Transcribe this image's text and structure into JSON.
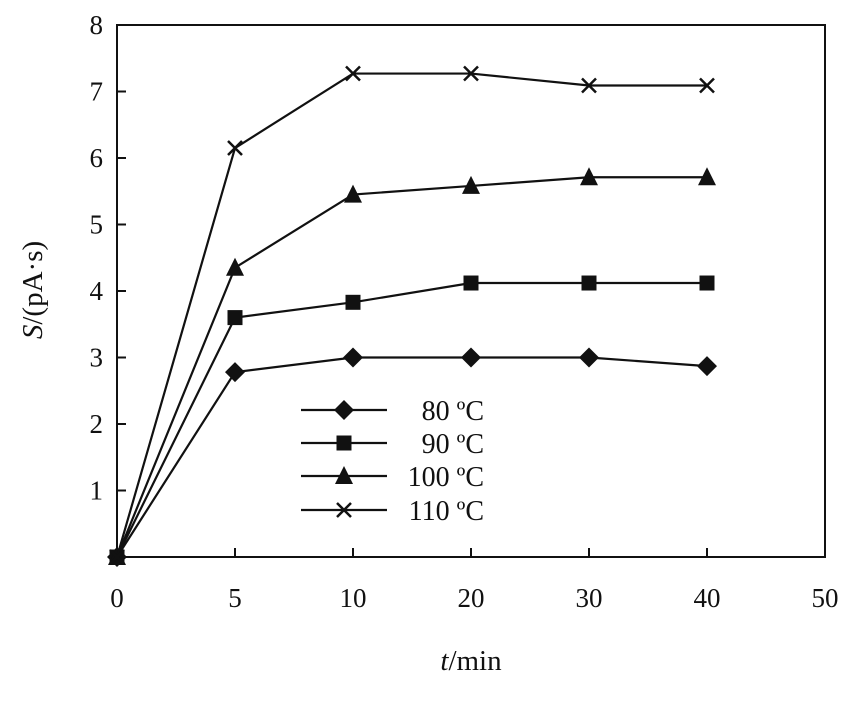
{
  "chart_data": {
    "type": "line",
    "title": "",
    "xlabel_italic": "t",
    "xlabel_rest": "/min",
    "ylabel_italic": "S",
    "ylabel_rest": "/(pA·s)",
    "x_tick_labels": [
      "0",
      "5",
      "10",
      "20",
      "30",
      "40",
      "50"
    ],
    "y_tick_labels": [
      "1",
      "2",
      "3",
      "4",
      "5",
      "6",
      "7",
      "8"
    ],
    "ylim": [
      0,
      8
    ],
    "categories": [
      "0",
      "5",
      "10",
      "20",
      "30",
      "40"
    ],
    "legend_position": "center-left",
    "grid": false,
    "series": [
      {
        "name": "80 ºC",
        "marker": "diamond",
        "values": [
          0,
          2.78,
          3.0,
          3.0,
          3.0,
          2.87
        ]
      },
      {
        "name": "90 ºC",
        "marker": "square",
        "values": [
          0,
          3.6,
          3.83,
          4.12,
          4.12,
          4.12
        ]
      },
      {
        "name": "100 ºC",
        "marker": "triangle",
        "values": [
          0,
          4.35,
          5.45,
          5.58,
          5.71,
          5.71
        ]
      },
      {
        "name": "110 ºC",
        "marker": "cross",
        "values": [
          0,
          6.15,
          7.27,
          7.27,
          7.09,
          7.09
        ]
      }
    ]
  }
}
